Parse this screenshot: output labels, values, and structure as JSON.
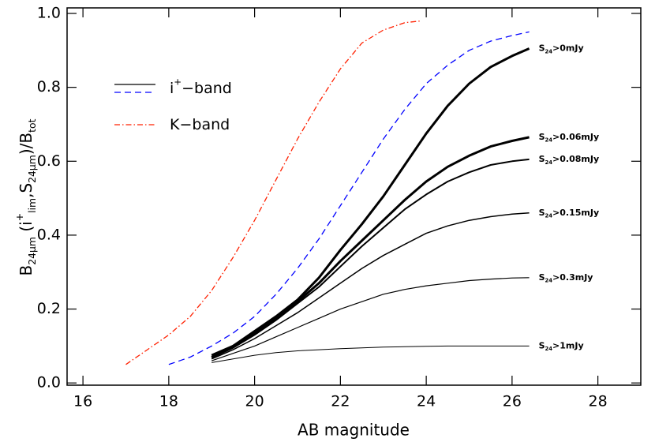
{
  "chart_data": {
    "type": "line",
    "xlabel": "AB magnitude",
    "ylabel": [
      {
        "text": "B"
      },
      {
        "text": "24μm",
        "script": "sub"
      },
      {
        "text": " (i"
      },
      {
        "text": "+",
        "script": "sup"
      },
      {
        "text": "lim",
        "script": "sub"
      },
      {
        "text": ",S"
      },
      {
        "text": "24μm",
        "script": "sub"
      },
      {
        "text": ")/B"
      },
      {
        "text": "tot",
        "script": "sub"
      }
    ],
    "xlim": [
      15.63,
      29
    ],
    "ylim": [
      -0.006,
      1.015
    ],
    "xticks": [
      16,
      18,
      20,
      22,
      24,
      26,
      28
    ],
    "yticks": [
      {
        "value": 0,
        "label": "0.0"
      },
      0.2,
      0.4,
      0.6,
      0.8,
      {
        "value": 1,
        "label": "1.0"
      }
    ],
    "legend": [
      {
        "label": [
          {
            "text": "i"
          },
          {
            "text": "+",
            "script": "sup"
          },
          {
            "text": "−band"
          }
        ],
        "lines": [
          {
            "color": "#000000",
            "dash": "solid"
          },
          {
            "color": "#0000ff",
            "dash": "dashed"
          }
        ]
      },
      {
        "label": [
          {
            "text": "K−band"
          }
        ],
        "lines": [
          {
            "color": "#ff2000",
            "dash": "dashdot"
          }
        ]
      }
    ],
    "series": [
      {
        "label": [
          {
            "text": "S"
          },
          {
            "text": "24",
            "script": "sub"
          },
          {
            "text": ">0mJy"
          }
        ],
        "color": "#000000",
        "dash": "solid",
        "line_width": 3,
        "x": [
          19,
          19.5,
          20,
          20.5,
          21,
          21.5,
          22,
          22.5,
          23,
          23.5,
          24,
          24.5,
          25,
          25.5,
          26,
          26.4
        ],
        "values": [
          0.075,
          0.1,
          0.14,
          0.18,
          0.225,
          0.285,
          0.36,
          0.43,
          0.505,
          0.59,
          0.675,
          0.75,
          0.81,
          0.855,
          0.885,
          0.905
        ]
      },
      {
        "label": [
          {
            "text": "S"
          },
          {
            "text": "24",
            "script": "sub"
          },
          {
            "text": ">0.06mJy"
          }
        ],
        "color": "#000000",
        "dash": "solid",
        "line_width": 3,
        "x": [
          19,
          19.5,
          20,
          20.5,
          21,
          21.5,
          22,
          22.5,
          23,
          23.5,
          24,
          24.5,
          25,
          25.5,
          26,
          26.4
        ],
        "values": [
          0.07,
          0.1,
          0.135,
          0.175,
          0.22,
          0.27,
          0.33,
          0.385,
          0.44,
          0.495,
          0.545,
          0.585,
          0.615,
          0.64,
          0.655,
          0.665
        ]
      },
      {
        "label": [
          {
            "text": "S"
          },
          {
            "text": "24",
            "script": "sub"
          },
          {
            "text": ">0.08mJy"
          }
        ],
        "color": "#000000",
        "dash": "solid",
        "line_width": 2,
        "x": [
          19,
          19.5,
          20,
          20.5,
          21,
          21.5,
          22,
          22.5,
          23,
          23.5,
          24,
          24.5,
          25,
          25.5,
          26,
          26.4
        ],
        "values": [
          0.068,
          0.095,
          0.13,
          0.17,
          0.215,
          0.26,
          0.315,
          0.37,
          0.42,
          0.47,
          0.51,
          0.545,
          0.57,
          0.59,
          0.6,
          0.605
        ]
      },
      {
        "label": [
          {
            "text": "S"
          },
          {
            "text": "24",
            "script": "sub"
          },
          {
            "text": ">0.15mJy"
          }
        ],
        "color": "#000000",
        "dash": "solid",
        "line_width": 1.5,
        "x": [
          19,
          19.5,
          20,
          20.5,
          21,
          21.5,
          22,
          22.5,
          23,
          23.5,
          24,
          24.5,
          25,
          25.5,
          26,
          26.4
        ],
        "values": [
          0.065,
          0.09,
          0.12,
          0.155,
          0.19,
          0.23,
          0.27,
          0.31,
          0.345,
          0.375,
          0.405,
          0.425,
          0.44,
          0.45,
          0.457,
          0.46
        ]
      },
      {
        "label": [
          {
            "text": "S"
          },
          {
            "text": "24",
            "script": "sub"
          },
          {
            "text": ">0.3mJy"
          }
        ],
        "color": "#000000",
        "dash": "solid",
        "line_width": 1.2,
        "x": [
          19,
          19.5,
          20,
          20.5,
          21,
          21.5,
          22,
          22.5,
          23,
          23.5,
          24,
          24.5,
          25,
          25.5,
          26,
          26.4
        ],
        "values": [
          0.06,
          0.08,
          0.1,
          0.125,
          0.15,
          0.175,
          0.2,
          0.22,
          0.24,
          0.253,
          0.263,
          0.27,
          0.277,
          0.281,
          0.284,
          0.285
        ]
      },
      {
        "label": [
          {
            "text": "S"
          },
          {
            "text": "24",
            "script": "sub"
          },
          {
            "text": ">1mJy"
          }
        ],
        "color": "#000000",
        "dash": "solid",
        "line_width": 1,
        "x": [
          19,
          19.5,
          20,
          20.5,
          21,
          21.5,
          22,
          22.5,
          23,
          23.5,
          24,
          24.5,
          25,
          25.5,
          26,
          26.4
        ],
        "values": [
          0.055,
          0.065,
          0.075,
          0.082,
          0.087,
          0.09,
          0.093,
          0.095,
          0.097,
          0.098,
          0.099,
          0.1,
          0.1,
          0.1,
          0.1,
          0.1
        ]
      },
      {
        "color": "#0000ff",
        "dash": "dashed",
        "line_width": 1.3,
        "x": [
          18,
          18.5,
          19,
          19.5,
          20,
          20.5,
          21,
          21.5,
          22,
          22.5,
          23,
          23.5,
          24,
          24.5,
          25,
          25.5,
          26,
          26.4
        ],
        "values": [
          0.05,
          0.07,
          0.1,
          0.135,
          0.18,
          0.24,
          0.31,
          0.39,
          0.48,
          0.57,
          0.66,
          0.74,
          0.81,
          0.86,
          0.9,
          0.925,
          0.94,
          0.95
        ]
      },
      {
        "color": "#ff2000",
        "dash": "dashdot",
        "line_width": 1.3,
        "x": [
          17,
          17.5,
          18,
          18.5,
          19,
          19.5,
          20,
          20.5,
          21,
          21.5,
          22,
          22.5,
          23,
          23.5,
          23.9
        ],
        "values": [
          0.05,
          0.09,
          0.13,
          0.18,
          0.25,
          0.34,
          0.44,
          0.55,
          0.66,
          0.76,
          0.85,
          0.92,
          0.955,
          0.975,
          0.98
        ]
      }
    ]
  }
}
